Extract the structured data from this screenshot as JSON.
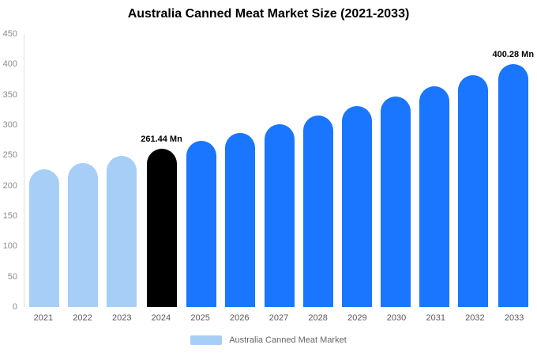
{
  "chart_data": {
    "type": "bar",
    "title": "Australia Canned Meat Market Size (2021-2033)",
    "categories": [
      "2021",
      "2022",
      "2023",
      "2024",
      "2025",
      "2026",
      "2027",
      "2028",
      "2029",
      "2030",
      "2031",
      "2032",
      "2033"
    ],
    "values": [
      226.8,
      237.9,
      249.4,
      261.44,
      274.1,
      287.4,
      301.3,
      315.9,
      331.2,
      347.3,
      364.1,
      381.8,
      400.28
    ],
    "bar_colors": [
      "#A6CEF7",
      "#A6CEF7",
      "#A6CEF7",
      "#000000",
      "#1A75FF",
      "#1A75FF",
      "#1A75FF",
      "#1A75FF",
      "#1A75FF",
      "#1A75FF",
      "#1A75FF",
      "#1A75FF",
      "#1A75FF"
    ],
    "annotations": [
      {
        "index": 3,
        "label": "261.44 Mn"
      },
      {
        "index": 12,
        "label": "400.28 Mn"
      }
    ],
    "ylim": [
      0,
      450
    ],
    "yticks": [
      0,
      50,
      100,
      150,
      200,
      250,
      300,
      350,
      400,
      450
    ],
    "grid": false,
    "legend_position": "bottom",
    "legend": [
      {
        "label": "Australia Canned Meat Market",
        "color": "#A6CEF7"
      }
    ]
  }
}
